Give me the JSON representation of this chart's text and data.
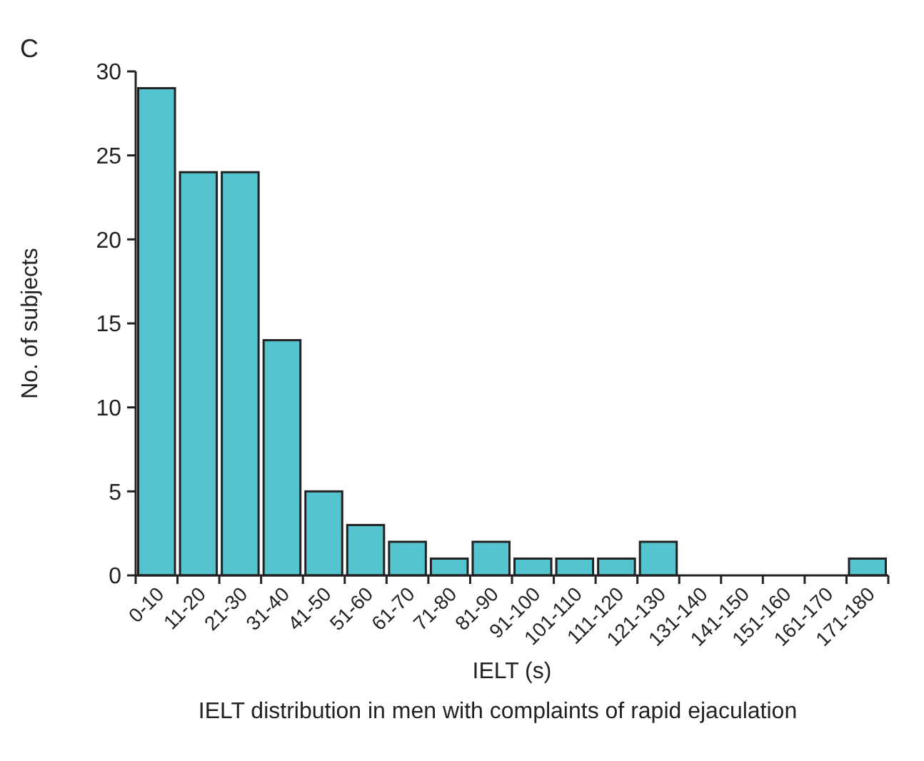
{
  "chart_data": {
    "type": "bar",
    "title": "C",
    "xlabel": "IELT (s)",
    "ylabel": "No. of subjects",
    "annotations": [
      "IELT distribution in men with complaints of rapid ejaculation"
    ],
    "categories": [
      "0-10",
      "11-20",
      "21-30",
      "31-40",
      "41-50",
      "51-60",
      "61-70",
      "71-80",
      "81-90",
      "91-100",
      "101-110",
      "111-120",
      "121-130",
      "131-140",
      "141-150",
      "151-160",
      "161-170",
      "171-180"
    ],
    "values": [
      29,
      24,
      24,
      14,
      5,
      3,
      2,
      1,
      2,
      1,
      1,
      1,
      2,
      0,
      0,
      0,
      0,
      1
    ],
    "color": "#55c4cf",
    "ylim": [
      0,
      30
    ],
    "yticks": [
      0,
      5,
      10,
      15,
      20,
      25,
      30
    ],
    "grid": false
  }
}
